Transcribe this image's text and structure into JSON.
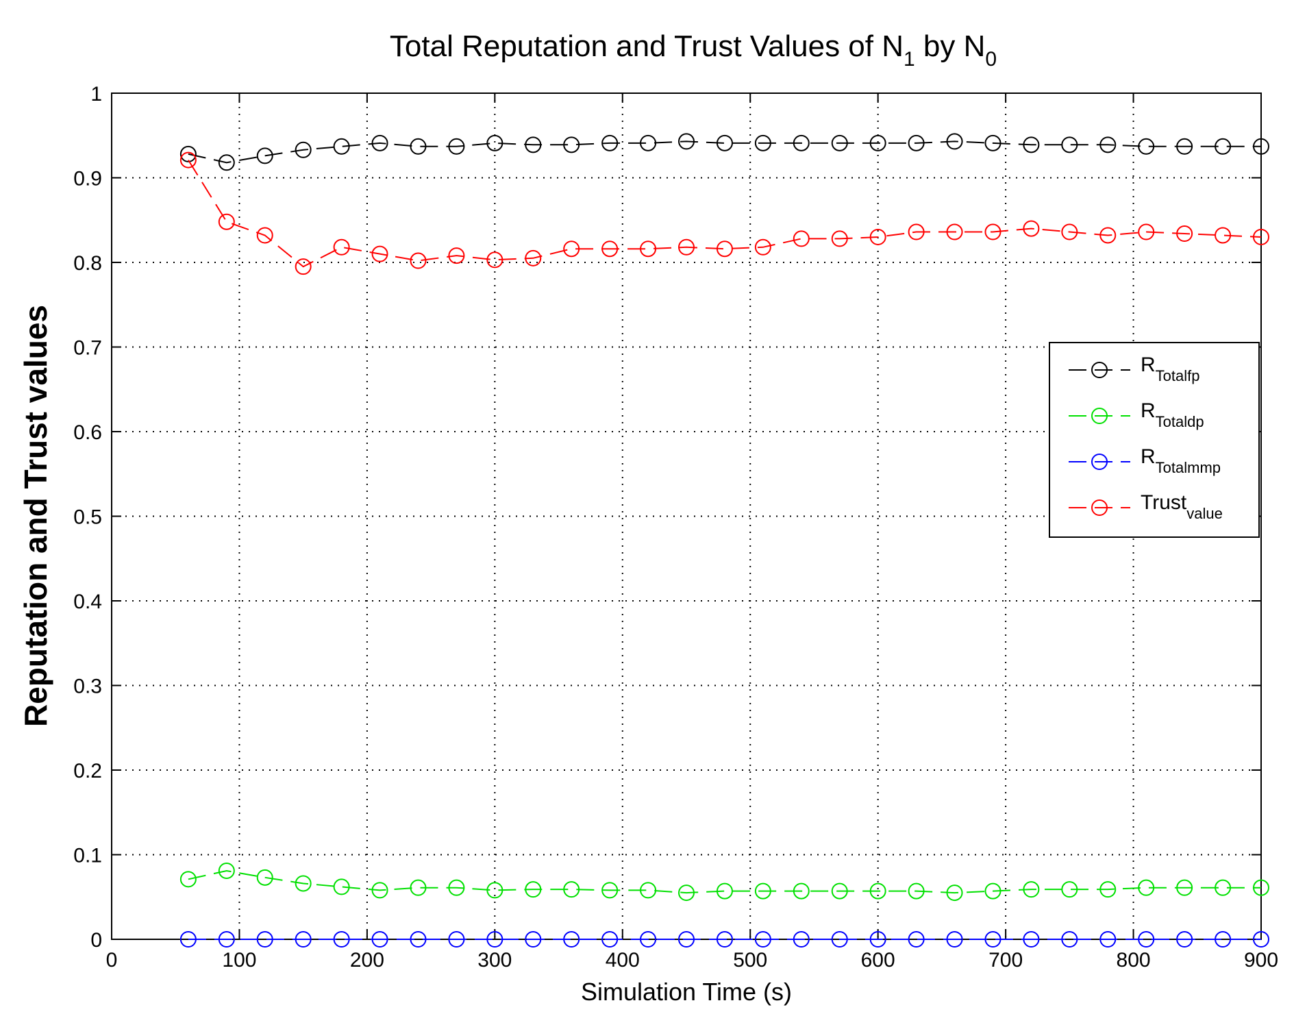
{
  "chart_data": {
    "type": "line",
    "title": {
      "text": "Total Reputation and Trust Values of N",
      "sub1": "1",
      "middle": " by N",
      "sub2": "0"
    },
    "xlabel": "Simulation Time (s)",
    "ylabel": "Reputation and Trust values",
    "xlim": [
      0,
      900
    ],
    "ylim": [
      0,
      1
    ],
    "xticks": [
      0,
      100,
      200,
      300,
      400,
      500,
      600,
      700,
      800,
      900
    ],
    "yticks": [
      0,
      0.1,
      0.2,
      0.3,
      0.4,
      0.5,
      0.6,
      0.7,
      0.8,
      0.9,
      1
    ],
    "ytick_labels": [
      "0",
      "0.1",
      "0.2",
      "0.3",
      "0.4",
      "0.5",
      "0.6",
      "0.7",
      "0.8",
      "0.9",
      "1"
    ],
    "grid": true,
    "legend_position": "right",
    "x": [
      60,
      90,
      120,
      150,
      180,
      210,
      240,
      270,
      300,
      330,
      360,
      390,
      420,
      450,
      480,
      510,
      540,
      570,
      600,
      630,
      660,
      690,
      720,
      750,
      780,
      810,
      840,
      870,
      900
    ],
    "series": [
      {
        "name": "R",
        "subscript": "Totalfp",
        "color": "#000000",
        "values": [
          0.928,
          0.918,
          0.926,
          0.933,
          0.937,
          0.941,
          0.937,
          0.937,
          0.941,
          0.939,
          0.939,
          0.941,
          0.941,
          0.943,
          0.941,
          0.941,
          0.941,
          0.941,
          0.941,
          0.941,
          0.943,
          0.941,
          0.939,
          0.939,
          0.939,
          0.937,
          0.937,
          0.937,
          0.937
        ]
      },
      {
        "name": "R",
        "subscript": "Totaldp",
        "color": "#00e000",
        "values": [
          0.071,
          0.081,
          0.073,
          0.066,
          0.062,
          0.058,
          0.061,
          0.061,
          0.058,
          0.059,
          0.059,
          0.058,
          0.058,
          0.055,
          0.057,
          0.057,
          0.057,
          0.057,
          0.057,
          0.057,
          0.055,
          0.057,
          0.059,
          0.059,
          0.059,
          0.061,
          0.061,
          0.061,
          0.061
        ]
      },
      {
        "name": "R",
        "subscript": "Totalmmp",
        "color": "#0000ff",
        "values": [
          0,
          0,
          0,
          0,
          0,
          0,
          0,
          0,
          0,
          0,
          0,
          0,
          0,
          0,
          0,
          0,
          0,
          0,
          0,
          0,
          0,
          0,
          0,
          0,
          0,
          0,
          0,
          0,
          0
        ]
      },
      {
        "name": "Trust",
        "subscript": "value",
        "color": "#ff0000",
        "values": [
          0.921,
          0.848,
          0.832,
          0.795,
          0.818,
          0.81,
          0.802,
          0.808,
          0.803,
          0.805,
          0.816,
          0.816,
          0.816,
          0.818,
          0.816,
          0.818,
          0.828,
          0.828,
          0.83,
          0.836,
          0.836,
          0.836,
          0.84,
          0.836,
          0.832,
          0.836,
          0.834,
          0.832,
          0.83
        ]
      }
    ]
  }
}
